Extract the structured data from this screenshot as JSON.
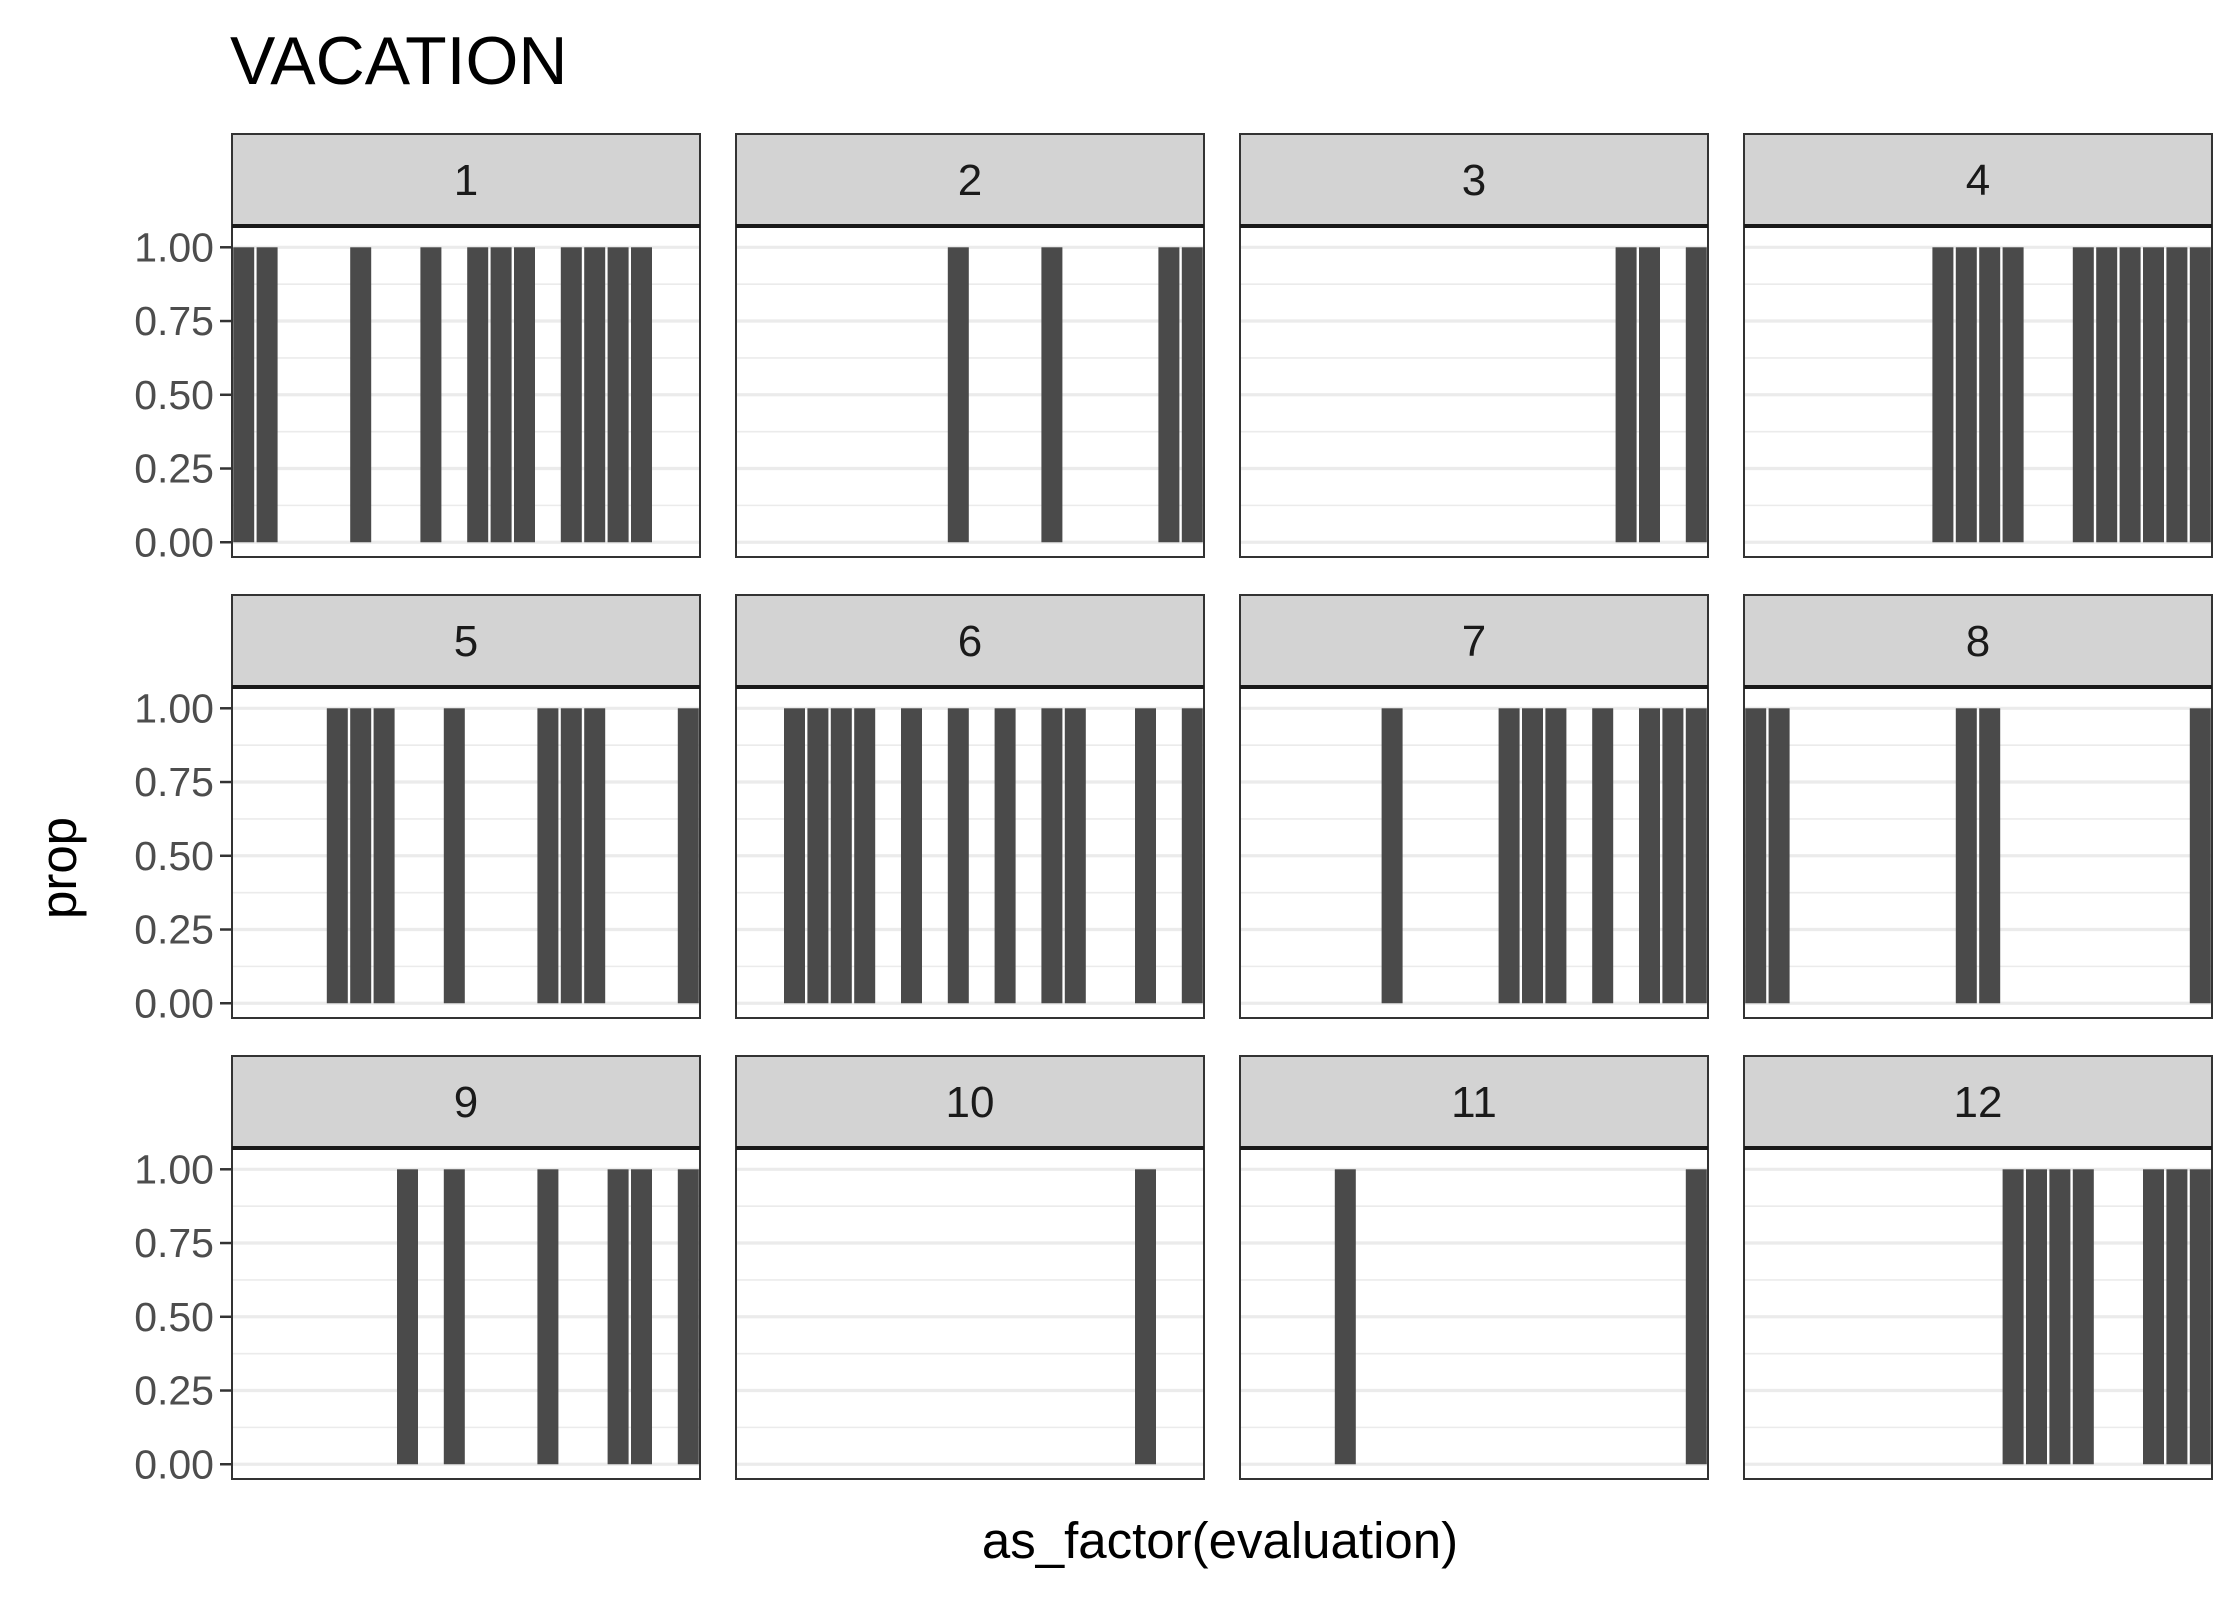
{
  "chart_data": {
    "type": "bar",
    "title": "VACATION",
    "xlabel": "as_factor(evaluation)",
    "ylabel": "prop",
    "ylim": [
      0,
      1.0
    ],
    "y_ticks": [
      "0.00",
      "0.25",
      "0.50",
      "0.75",
      "1.00"
    ],
    "x_ticks_shown": false,
    "grid": true,
    "n_categories": 20,
    "colors": {
      "bar": "#4a4a4a",
      "strip_fill": "#d3d3d3",
      "strip_border": "#333333",
      "panel_border": "#333333",
      "grid": "#ebebeb",
      "tick_text": "#4d4d4d"
    },
    "facets": [
      {
        "label": "1",
        "bars": [
          {
            "cat": 1,
            "value": 1
          },
          {
            "cat": 2,
            "value": 1
          },
          {
            "cat": 6,
            "value": 1
          },
          {
            "cat": 9,
            "value": 1
          },
          {
            "cat": 11,
            "value": 1
          },
          {
            "cat": 12,
            "value": 1
          },
          {
            "cat": 13,
            "value": 1
          },
          {
            "cat": 15,
            "value": 1
          },
          {
            "cat": 16,
            "value": 1
          },
          {
            "cat": 17,
            "value": 1
          },
          {
            "cat": 18,
            "value": 1
          }
        ]
      },
      {
        "label": "2",
        "bars": [
          {
            "cat": 10,
            "value": 1
          },
          {
            "cat": 14,
            "value": 1
          },
          {
            "cat": 19,
            "value": 1
          },
          {
            "cat": 20,
            "value": 1
          }
        ]
      },
      {
        "label": "3",
        "bars": [
          {
            "cat": 17,
            "value": 1
          },
          {
            "cat": 18,
            "value": 1
          },
          {
            "cat": 20,
            "value": 1
          }
        ]
      },
      {
        "label": "4",
        "bars": [
          {
            "cat": 9,
            "value": 1
          },
          {
            "cat": 10,
            "value": 1
          },
          {
            "cat": 11,
            "value": 1
          },
          {
            "cat": 12,
            "value": 1
          },
          {
            "cat": 15,
            "value": 1
          },
          {
            "cat": 16,
            "value": 1
          },
          {
            "cat": 17,
            "value": 1
          },
          {
            "cat": 18,
            "value": 1
          },
          {
            "cat": 19,
            "value": 1
          },
          {
            "cat": 20,
            "value": 1
          }
        ]
      },
      {
        "label": "5",
        "bars": [
          {
            "cat": 5,
            "value": 1
          },
          {
            "cat": 6,
            "value": 1
          },
          {
            "cat": 7,
            "value": 1
          },
          {
            "cat": 10,
            "value": 1
          },
          {
            "cat": 14,
            "value": 1
          },
          {
            "cat": 15,
            "value": 1
          },
          {
            "cat": 16,
            "value": 1
          },
          {
            "cat": 20,
            "value": 1
          }
        ]
      },
      {
        "label": "6",
        "bars": [
          {
            "cat": 3,
            "value": 1
          },
          {
            "cat": 4,
            "value": 1
          },
          {
            "cat": 5,
            "value": 1
          },
          {
            "cat": 6,
            "value": 1
          },
          {
            "cat": 8,
            "value": 1
          },
          {
            "cat": 10,
            "value": 1
          },
          {
            "cat": 12,
            "value": 1
          },
          {
            "cat": 14,
            "value": 1
          },
          {
            "cat": 15,
            "value": 1
          },
          {
            "cat": 18,
            "value": 1
          },
          {
            "cat": 20,
            "value": 1
          }
        ]
      },
      {
        "label": "7",
        "bars": [
          {
            "cat": 7,
            "value": 1
          },
          {
            "cat": 12,
            "value": 1
          },
          {
            "cat": 13,
            "value": 1
          },
          {
            "cat": 14,
            "value": 1
          },
          {
            "cat": 16,
            "value": 1
          },
          {
            "cat": 18,
            "value": 1
          },
          {
            "cat": 19,
            "value": 1
          },
          {
            "cat": 20,
            "value": 1
          }
        ]
      },
      {
        "label": "8",
        "bars": [
          {
            "cat": 1,
            "value": 1
          },
          {
            "cat": 2,
            "value": 1
          },
          {
            "cat": 10,
            "value": 1
          },
          {
            "cat": 11,
            "value": 1
          },
          {
            "cat": 20,
            "value": 1
          }
        ]
      },
      {
        "label": "9",
        "bars": [
          {
            "cat": 8,
            "value": 1
          },
          {
            "cat": 10,
            "value": 1
          },
          {
            "cat": 14,
            "value": 1
          },
          {
            "cat": 17,
            "value": 1
          },
          {
            "cat": 18,
            "value": 1
          },
          {
            "cat": 20,
            "value": 1
          }
        ]
      },
      {
        "label": "10",
        "bars": [
          {
            "cat": 18,
            "value": 1
          }
        ]
      },
      {
        "label": "11",
        "bars": [
          {
            "cat": 5,
            "value": 1
          },
          {
            "cat": 20,
            "value": 1
          }
        ]
      },
      {
        "label": "12",
        "bars": [
          {
            "cat": 12,
            "value": 1
          },
          {
            "cat": 13,
            "value": 1
          },
          {
            "cat": 14,
            "value": 1
          },
          {
            "cat": 15,
            "value": 1
          },
          {
            "cat": 18,
            "value": 1
          },
          {
            "cat": 19,
            "value": 1
          },
          {
            "cat": 20,
            "value": 1
          }
        ]
      }
    ]
  }
}
